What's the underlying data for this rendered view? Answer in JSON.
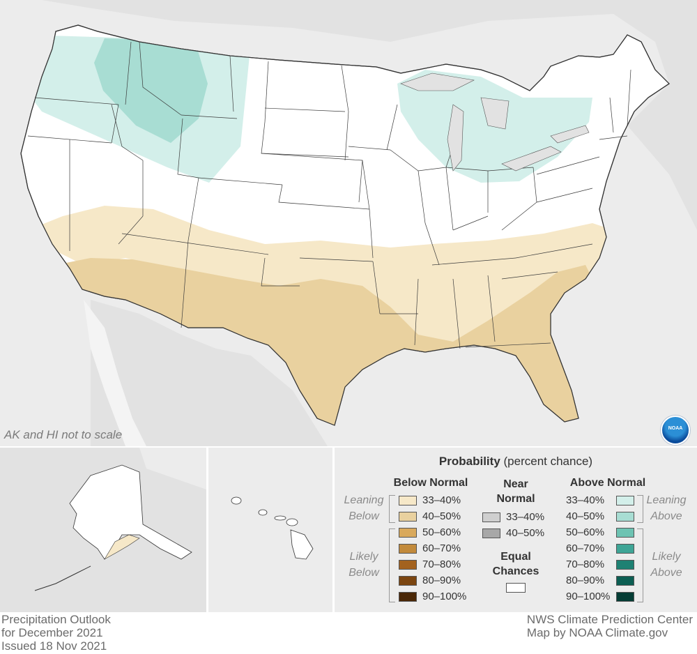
{
  "map": {
    "note": "AK and HI not to scale",
    "logo_text": "NOAA",
    "land_color": "#ffffff",
    "background_color": "#ececec"
  },
  "legend": {
    "title_bold": "Probability",
    "title_rest": " (percent chance)",
    "below_normal": {
      "heading": "Below Normal",
      "leaning_label_1": "Leaning",
      "leaning_label_2": "Below",
      "likely_label_1": "Likely",
      "likely_label_2": "Below",
      "items": [
        {
          "label": "33–40%",
          "color": "#f6e8c8"
        },
        {
          "label": "40–50%",
          "color": "#e9d19f"
        },
        {
          "label": "50–60%",
          "color": "#d9a95c"
        },
        {
          "label": "60–70%",
          "color": "#c28a3b"
        },
        {
          "label": "70–80%",
          "color": "#a3621f"
        },
        {
          "label": "80–90%",
          "color": "#7b4510"
        },
        {
          "label": "90–100%",
          "color": "#4a2706"
        }
      ]
    },
    "near_normal": {
      "heading_1": "Near",
      "heading_2": "Normal",
      "items": [
        {
          "label": "33–40%",
          "color": "#cfcfcf"
        },
        {
          "label": "40–50%",
          "color": "#a8a8a8"
        }
      ]
    },
    "equal_chances": {
      "heading_1": "Equal",
      "heading_2": "Chances",
      "color": "#ffffff"
    },
    "above_normal": {
      "heading": "Above Normal",
      "leaning_label_1": "Leaning",
      "leaning_label_2": "Above",
      "likely_label_1": "Likely",
      "likely_label_2": "Above",
      "items": [
        {
          "label": "33–40%",
          "color": "#d3efea"
        },
        {
          "label": "40–50%",
          "color": "#a8ddd3"
        },
        {
          "label": "50–60%",
          "color": "#6dc3b2"
        },
        {
          "label": "60–70%",
          "color": "#3ea596"
        },
        {
          "label": "70–80%",
          "color": "#1e8173"
        },
        {
          "label": "80–90%",
          "color": "#0c5e52"
        },
        {
          "label": "90–100%",
          "color": "#053d35"
        }
      ]
    }
  },
  "footer": {
    "left_line1": "Precipitation Outlook",
    "left_line2": "for December 2021",
    "left_line3": "Issued 18 Nov 2021",
    "right_line1": "NWS Climate Prediction Center",
    "right_line2": "Map by NOAA Climate.gov"
  }
}
